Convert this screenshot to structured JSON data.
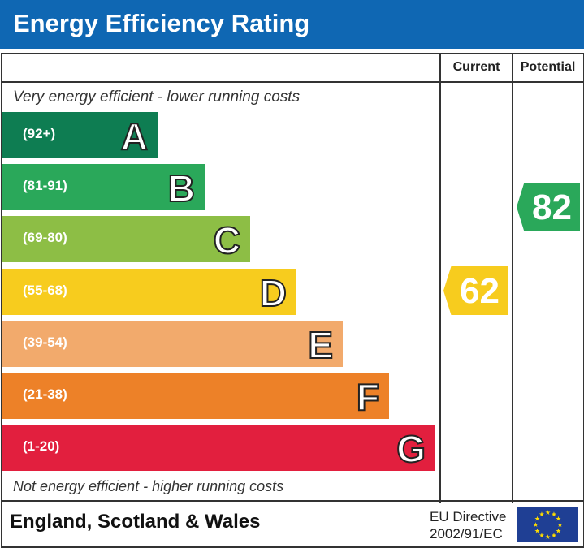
{
  "header": {
    "title": "Energy Efficiency Rating"
  },
  "columns": {
    "current": "Current",
    "potential": "Potential"
  },
  "notes": {
    "top": "Very energy efficient - lower running costs",
    "bottom": "Not energy efficient - higher running costs"
  },
  "chart_data": {
    "type": "bar",
    "bands": [
      {
        "letter": "A",
        "range": "(92+)",
        "color": "#0e7d52"
      },
      {
        "letter": "B",
        "range": "(81-91)",
        "color": "#2aa85a"
      },
      {
        "letter": "C",
        "range": "(69-80)",
        "color": "#8dbe45"
      },
      {
        "letter": "D",
        "range": "(55-68)",
        "color": "#f7cc1e"
      },
      {
        "letter": "E",
        "range": "(39-54)",
        "color": "#f2aa6c"
      },
      {
        "letter": "F",
        "range": "(21-38)",
        "color": "#ed8128"
      },
      {
        "letter": "G",
        "range": "(1-20)",
        "color": "#e21f3e"
      }
    ],
    "current": {
      "value": "62",
      "band": "D"
    },
    "potential": {
      "value": "82",
      "band": "B"
    }
  },
  "footer": {
    "region": "England, Scotland & Wales",
    "directive_line1": "EU Directive",
    "directive_line2": "2002/91/EC"
  }
}
